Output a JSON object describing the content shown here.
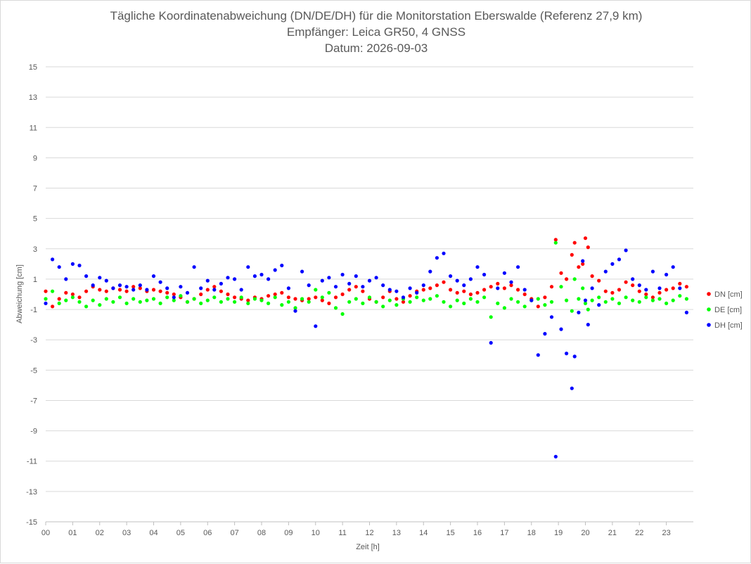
{
  "chart_data": {
    "type": "scatter",
    "title_lines": [
      "Tägliche Koordinatenabweichung (DN/DE/DH) für die Monitorstation Eberswalde (Referenz 27,9 km)",
      "Empfänger: Leica GR50, 4 GNSS",
      "Datum: 2026-09-03"
    ],
    "xlabel": "Zeit [h]",
    "ylabel": "Abweichung [cm]",
    "xlim": [
      0,
      24
    ],
    "ylim": [
      -15,
      15
    ],
    "x_ticks": [
      "00",
      "01",
      "02",
      "03",
      "04",
      "05",
      "06",
      "07",
      "08",
      "09",
      "10",
      "11",
      "12",
      "13",
      "14",
      "15",
      "16",
      "17",
      "18",
      "19",
      "20",
      "21",
      "22",
      "23"
    ],
    "y_ticks": [
      15,
      13,
      11,
      9,
      7,
      5,
      3,
      1,
      -1,
      -3,
      -5,
      -7,
      -9,
      -11,
      -13,
      -15
    ],
    "grid": true,
    "legend_position": "right",
    "series": [
      {
        "name": "DN [cm]",
        "color": "#ff0000",
        "points": [
          [
            0.0,
            0.2
          ],
          [
            0.25,
            -0.8
          ],
          [
            0.5,
            -0.3
          ],
          [
            0.75,
            0.1
          ],
          [
            1.0,
            0.0
          ],
          [
            1.25,
            -0.2
          ],
          [
            1.5,
            0.2
          ],
          [
            1.75,
            0.5
          ],
          [
            2.0,
            0.3
          ],
          [
            2.25,
            0.2
          ],
          [
            2.5,
            0.4
          ],
          [
            2.75,
            0.3
          ],
          [
            3.0,
            0.2
          ],
          [
            3.25,
            0.5
          ],
          [
            3.5,
            0.4
          ],
          [
            3.75,
            0.2
          ],
          [
            4.0,
            0.3
          ],
          [
            4.25,
            0.2
          ],
          [
            4.5,
            0.1
          ],
          [
            4.75,
            0.0
          ],
          [
            5.0,
            -0.2
          ],
          [
            5.25,
            -0.5
          ],
          [
            5.5,
            -0.3
          ],
          [
            5.75,
            0.0
          ],
          [
            6.0,
            0.3
          ],
          [
            6.25,
            0.5
          ],
          [
            6.5,
            0.2
          ],
          [
            6.75,
            0.0
          ],
          [
            7.0,
            -0.2
          ],
          [
            7.25,
            -0.3
          ],
          [
            7.5,
            -0.4
          ],
          [
            7.75,
            -0.2
          ],
          [
            8.0,
            -0.3
          ],
          [
            8.25,
            -0.1
          ],
          [
            8.5,
            0.0
          ],
          [
            8.75,
            0.1
          ],
          [
            9.0,
            -0.2
          ],
          [
            9.25,
            -0.3
          ],
          [
            9.5,
            -0.4
          ],
          [
            9.75,
            -0.3
          ],
          [
            10.0,
            -0.2
          ],
          [
            10.25,
            -0.4
          ],
          [
            10.5,
            -0.6
          ],
          [
            10.75,
            -0.2
          ],
          [
            11.0,
            0.0
          ],
          [
            11.25,
            0.3
          ],
          [
            11.5,
            0.5
          ],
          [
            11.75,
            0.2
          ],
          [
            12.0,
            -0.3
          ],
          [
            12.25,
            -0.5
          ],
          [
            12.5,
            -0.2
          ],
          [
            12.75,
            0.2
          ],
          [
            13.0,
            -0.3
          ],
          [
            13.25,
            -0.5
          ],
          [
            13.5,
            -0.1
          ],
          [
            13.75,
            0.2
          ],
          [
            14.0,
            0.3
          ],
          [
            14.25,
            0.4
          ],
          [
            14.5,
            0.6
          ],
          [
            14.75,
            0.8
          ],
          [
            15.0,
            0.3
          ],
          [
            15.25,
            0.1
          ],
          [
            15.5,
            0.2
          ],
          [
            15.75,
            0.0
          ],
          [
            16.0,
            0.1
          ],
          [
            16.25,
            0.3
          ],
          [
            16.5,
            0.5
          ],
          [
            16.75,
            0.7
          ],
          [
            17.0,
            0.4
          ],
          [
            17.25,
            0.6
          ],
          [
            17.5,
            0.3
          ],
          [
            17.75,
            0.0
          ],
          [
            18.0,
            -0.3
          ],
          [
            18.25,
            -0.8
          ],
          [
            18.5,
            -0.2
          ],
          [
            18.75,
            0.5
          ],
          [
            18.9,
            3.6
          ],
          [
            19.1,
            1.4
          ],
          [
            19.3,
            1.0
          ],
          [
            19.5,
            2.6
          ],
          [
            19.6,
            3.4
          ],
          [
            19.75,
            1.8
          ],
          [
            19.9,
            2.0
          ],
          [
            20.0,
            3.7
          ],
          [
            20.1,
            3.1
          ],
          [
            20.25,
            1.2
          ],
          [
            20.5,
            0.9
          ],
          [
            20.75,
            0.2
          ],
          [
            21.0,
            0.1
          ],
          [
            21.25,
            0.3
          ],
          [
            21.5,
            0.8
          ],
          [
            21.75,
            0.6
          ],
          [
            22.0,
            0.2
          ],
          [
            22.25,
            0.0
          ],
          [
            22.5,
            -0.2
          ],
          [
            22.75,
            0.1
          ],
          [
            23.0,
            0.3
          ],
          [
            23.25,
            0.4
          ],
          [
            23.5,
            0.7
          ],
          [
            23.75,
            0.5
          ]
        ]
      },
      {
        "name": "DE [cm]",
        "color": "#00ff00",
        "points": [
          [
            0.0,
            -0.3
          ],
          [
            0.25,
            0.2
          ],
          [
            0.5,
            -0.6
          ],
          [
            0.75,
            -0.4
          ],
          [
            1.0,
            -0.2
          ],
          [
            1.25,
            -0.5
          ],
          [
            1.5,
            -0.8
          ],
          [
            1.75,
            -0.4
          ],
          [
            2.0,
            -0.7
          ],
          [
            2.25,
            -0.3
          ],
          [
            2.5,
            -0.5
          ],
          [
            2.75,
            -0.2
          ],
          [
            3.0,
            -0.6
          ],
          [
            3.25,
            -0.3
          ],
          [
            3.5,
            -0.5
          ],
          [
            3.75,
            -0.4
          ],
          [
            4.0,
            -0.3
          ],
          [
            4.25,
            -0.6
          ],
          [
            4.5,
            -0.2
          ],
          [
            4.75,
            -0.4
          ],
          [
            5.0,
            -0.1
          ],
          [
            5.25,
            -0.5
          ],
          [
            5.5,
            -0.3
          ],
          [
            5.75,
            -0.6
          ],
          [
            6.0,
            -0.4
          ],
          [
            6.25,
            -0.2
          ],
          [
            6.5,
            -0.5
          ],
          [
            6.75,
            -0.3
          ],
          [
            7.0,
            -0.5
          ],
          [
            7.25,
            -0.2
          ],
          [
            7.5,
            -0.6
          ],
          [
            7.75,
            -0.3
          ],
          [
            8.0,
            -0.4
          ],
          [
            8.25,
            -0.6
          ],
          [
            8.5,
            -0.2
          ],
          [
            8.75,
            -0.7
          ],
          [
            9.0,
            -0.5
          ],
          [
            9.25,
            -0.9
          ],
          [
            9.5,
            -0.3
          ],
          [
            9.75,
            -0.5
          ],
          [
            10.0,
            0.3
          ],
          [
            10.25,
            -0.2
          ],
          [
            10.5,
            0.1
          ],
          [
            10.75,
            -0.9
          ],
          [
            11.0,
            -1.3
          ],
          [
            11.25,
            -0.5
          ],
          [
            11.5,
            -0.3
          ],
          [
            11.75,
            -0.6
          ],
          [
            12.0,
            -0.2
          ],
          [
            12.25,
            -0.5
          ],
          [
            12.5,
            -0.8
          ],
          [
            12.75,
            -0.4
          ],
          [
            13.0,
            -0.7
          ],
          [
            13.25,
            -0.3
          ],
          [
            13.5,
            -0.5
          ],
          [
            13.75,
            -0.2
          ],
          [
            14.0,
            -0.4
          ],
          [
            14.25,
            -0.3
          ],
          [
            14.5,
            -0.1
          ],
          [
            14.75,
            -0.5
          ],
          [
            15.0,
            -0.8
          ],
          [
            15.25,
            -0.4
          ],
          [
            15.5,
            -0.6
          ],
          [
            15.75,
            -0.3
          ],
          [
            16.0,
            -0.5
          ],
          [
            16.25,
            -0.2
          ],
          [
            16.5,
            -1.5
          ],
          [
            16.75,
            -0.6
          ],
          [
            17.0,
            -0.9
          ],
          [
            17.25,
            -0.3
          ],
          [
            17.5,
            -0.5
          ],
          [
            17.75,
            -0.8
          ],
          [
            18.0,
            -0.4
          ],
          [
            18.25,
            -0.3
          ],
          [
            18.5,
            -0.7
          ],
          [
            18.75,
            -0.5
          ],
          [
            18.9,
            3.4
          ],
          [
            19.1,
            0.5
          ],
          [
            19.3,
            -0.4
          ],
          [
            19.5,
            -1.1
          ],
          [
            19.6,
            1.0
          ],
          [
            19.75,
            -0.3
          ],
          [
            19.9,
            0.4
          ],
          [
            20.0,
            -0.6
          ],
          [
            20.1,
            -1.0
          ],
          [
            20.25,
            -0.4
          ],
          [
            20.5,
            -0.2
          ],
          [
            20.75,
            -0.5
          ],
          [
            21.0,
            -0.3
          ],
          [
            21.25,
            -0.6
          ],
          [
            21.5,
            -0.2
          ],
          [
            21.75,
            -0.4
          ],
          [
            22.0,
            -0.5
          ],
          [
            22.25,
            -0.2
          ],
          [
            22.5,
            -0.4
          ],
          [
            22.75,
            -0.3
          ],
          [
            23.0,
            -0.6
          ],
          [
            23.25,
            -0.4
          ],
          [
            23.5,
            -0.1
          ],
          [
            23.75,
            -0.3
          ]
        ]
      },
      {
        "name": "DH [cm]",
        "color": "#0000ff",
        "points": [
          [
            0.0,
            -0.6
          ],
          [
            0.25,
            2.3
          ],
          [
            0.5,
            1.8
          ],
          [
            0.75,
            1.0
          ],
          [
            1.0,
            2.0
          ],
          [
            1.25,
            1.9
          ],
          [
            1.5,
            1.2
          ],
          [
            1.75,
            0.6
          ],
          [
            2.0,
            1.1
          ],
          [
            2.25,
            0.9
          ],
          [
            2.5,
            0.4
          ],
          [
            2.75,
            0.6
          ],
          [
            3.0,
            0.5
          ],
          [
            3.25,
            0.3
          ],
          [
            3.5,
            0.6
          ],
          [
            3.75,
            0.3
          ],
          [
            4.0,
            1.2
          ],
          [
            4.25,
            0.8
          ],
          [
            4.5,
            0.4
          ],
          [
            4.75,
            -0.2
          ],
          [
            5.0,
            0.5
          ],
          [
            5.25,
            0.1
          ],
          [
            5.5,
            1.8
          ],
          [
            5.75,
            0.4
          ],
          [
            6.0,
            0.9
          ],
          [
            6.25,
            0.3
          ],
          [
            6.5,
            0.7
          ],
          [
            6.75,
            1.1
          ],
          [
            7.0,
            1.0
          ],
          [
            7.25,
            0.3
          ],
          [
            7.5,
            1.8
          ],
          [
            7.75,
            1.2
          ],
          [
            8.0,
            1.3
          ],
          [
            8.25,
            1.0
          ],
          [
            8.5,
            1.6
          ],
          [
            8.75,
            1.9
          ],
          [
            9.0,
            0.4
          ],
          [
            9.25,
            -1.1
          ],
          [
            9.5,
            1.5
          ],
          [
            9.75,
            0.6
          ],
          [
            10.0,
            -2.1
          ],
          [
            10.25,
            0.9
          ],
          [
            10.5,
            1.1
          ],
          [
            10.75,
            0.5
          ],
          [
            11.0,
            1.3
          ],
          [
            11.25,
            0.7
          ],
          [
            11.5,
            1.2
          ],
          [
            11.75,
            0.5
          ],
          [
            12.0,
            0.9
          ],
          [
            12.25,
            1.1
          ],
          [
            12.5,
            0.6
          ],
          [
            12.75,
            0.3
          ],
          [
            13.0,
            0.2
          ],
          [
            13.25,
            -0.2
          ],
          [
            13.5,
            0.4
          ],
          [
            13.75,
            0.1
          ],
          [
            14.0,
            0.6
          ],
          [
            14.25,
            1.5
          ],
          [
            14.5,
            2.4
          ],
          [
            14.75,
            2.7
          ],
          [
            15.0,
            1.2
          ],
          [
            15.25,
            0.9
          ],
          [
            15.5,
            0.6
          ],
          [
            15.75,
            1.0
          ],
          [
            16.0,
            1.8
          ],
          [
            16.25,
            1.3
          ],
          [
            16.5,
            -3.2
          ],
          [
            16.75,
            0.4
          ],
          [
            17.0,
            1.4
          ],
          [
            17.25,
            0.8
          ],
          [
            17.5,
            1.8
          ],
          [
            17.75,
            0.3
          ],
          [
            18.0,
            -0.4
          ],
          [
            18.25,
            -4.0
          ],
          [
            18.5,
            -2.6
          ],
          [
            18.75,
            -1.5
          ],
          [
            18.9,
            -10.7
          ],
          [
            19.1,
            -2.3
          ],
          [
            19.3,
            -3.9
          ],
          [
            19.5,
            -6.2
          ],
          [
            19.6,
            -4.1
          ],
          [
            19.75,
            -1.2
          ],
          [
            19.9,
            2.2
          ],
          [
            20.0,
            -0.4
          ],
          [
            20.1,
            -2.0
          ],
          [
            20.25,
            0.4
          ],
          [
            20.5,
            -0.7
          ],
          [
            20.75,
            1.5
          ],
          [
            21.0,
            2.0
          ],
          [
            21.25,
            2.3
          ],
          [
            21.5,
            2.9
          ],
          [
            21.75,
            1.0
          ],
          [
            22.0,
            0.6
          ],
          [
            22.25,
            0.3
          ],
          [
            22.5,
            1.5
          ],
          [
            22.75,
            0.4
          ],
          [
            23.0,
            1.3
          ],
          [
            23.25,
            1.8
          ],
          [
            23.5,
            0.4
          ],
          [
            23.75,
            -1.2
          ]
        ]
      }
    ]
  }
}
